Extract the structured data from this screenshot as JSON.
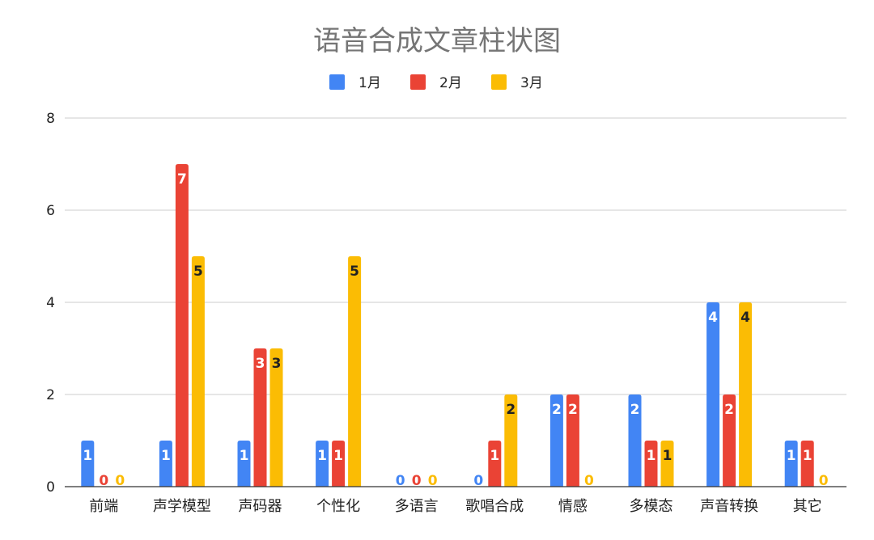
{
  "chart_data": {
    "type": "bar",
    "title": "语音合成文章柱状图",
    "xlabel": "",
    "ylabel": "",
    "categories": [
      "前端",
      "声学模型",
      "声码器",
      "个性化",
      "多语言",
      "歌唱合成",
      "情感",
      "多模态",
      "声音转换",
      "其它"
    ],
    "series": [
      {
        "name": "1月",
        "color": "#4285f4",
        "values": [
          1,
          1,
          1,
          1,
          0,
          0,
          2,
          2,
          4,
          1
        ]
      },
      {
        "name": "2月",
        "color": "#ea4335",
        "values": [
          0,
          7,
          3,
          1,
          0,
          1,
          2,
          1,
          2,
          1
        ]
      },
      {
        "name": "3月",
        "color": "#fbbc04",
        "values": [
          0,
          5,
          3,
          5,
          0,
          2,
          0,
          1,
          4,
          0
        ]
      }
    ],
    "ylim": [
      0,
      8
    ],
    "yticks": [
      0,
      2,
      4,
      6,
      8
    ],
    "grid": true,
    "legend_position": "top-center",
    "data_labels": true
  }
}
